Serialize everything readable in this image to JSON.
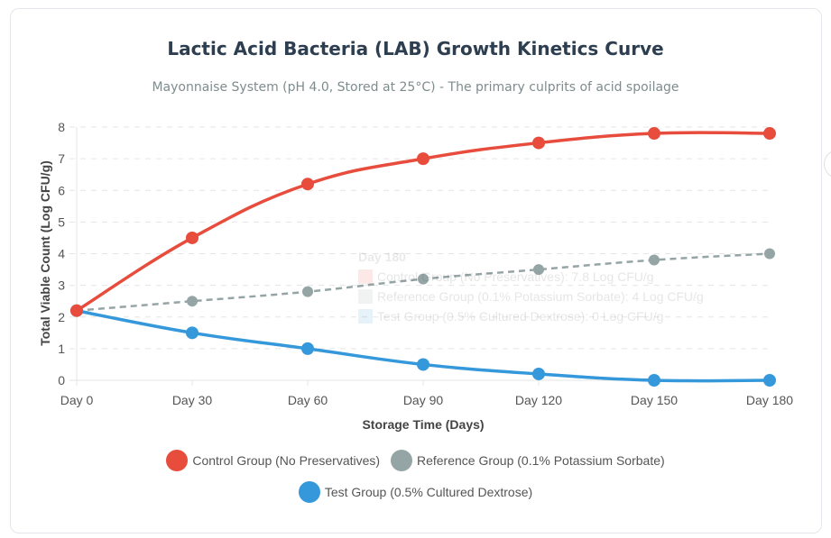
{
  "chart_data": {
    "type": "line",
    "title": "Lactic Acid Bacteria (LAB) Growth Kinetics Curve",
    "subtitle": "Mayonnaise System (pH 4.0, Stored at 25°C) - The primary culprits of acid spoilage",
    "xlabel": "Storage Time (Days)",
    "ylabel": "Total Viable Count (Log CFU/g)",
    "categories": [
      "Day 0",
      "Day 30",
      "Day 60",
      "Day 90",
      "Day 120",
      "Day 150",
      "Day 180"
    ],
    "ylim": [
      0,
      8
    ],
    "yticks": [
      "0",
      "1",
      "2",
      "3",
      "4",
      "5",
      "6",
      "7",
      "8"
    ],
    "grid": true,
    "legend_position": "bottom",
    "series": [
      {
        "name": "Control Group (No Preservatives)",
        "color": "#e74c3c",
        "dashed": false,
        "values": [
          2.2,
          4.5,
          6.2,
          7.0,
          7.5,
          7.8,
          7.8
        ]
      },
      {
        "name": "Reference Group (0.1% Potassium Sorbate)",
        "color": "#95a5a6",
        "dashed": true,
        "values": [
          2.2,
          2.5,
          2.8,
          3.2,
          3.5,
          3.8,
          4.0
        ]
      },
      {
        "name": "Test Group (0.5% Cultured Dextrose)",
        "color": "#3498db",
        "dashed": false,
        "values": [
          2.2,
          1.5,
          1.0,
          0.5,
          0.2,
          0.0,
          0.0
        ]
      }
    ],
    "tooltip": {
      "title": "Day 180",
      "lines": [
        "Control Group (No Preservatives): 7.8 Log CFU/g",
        "Reference Group (0.1% Potassium Sorbate): 4 Log CFU/g",
        "Test Group (0.5% Cultured Dextrose): 0 Log CFU/g"
      ]
    }
  }
}
